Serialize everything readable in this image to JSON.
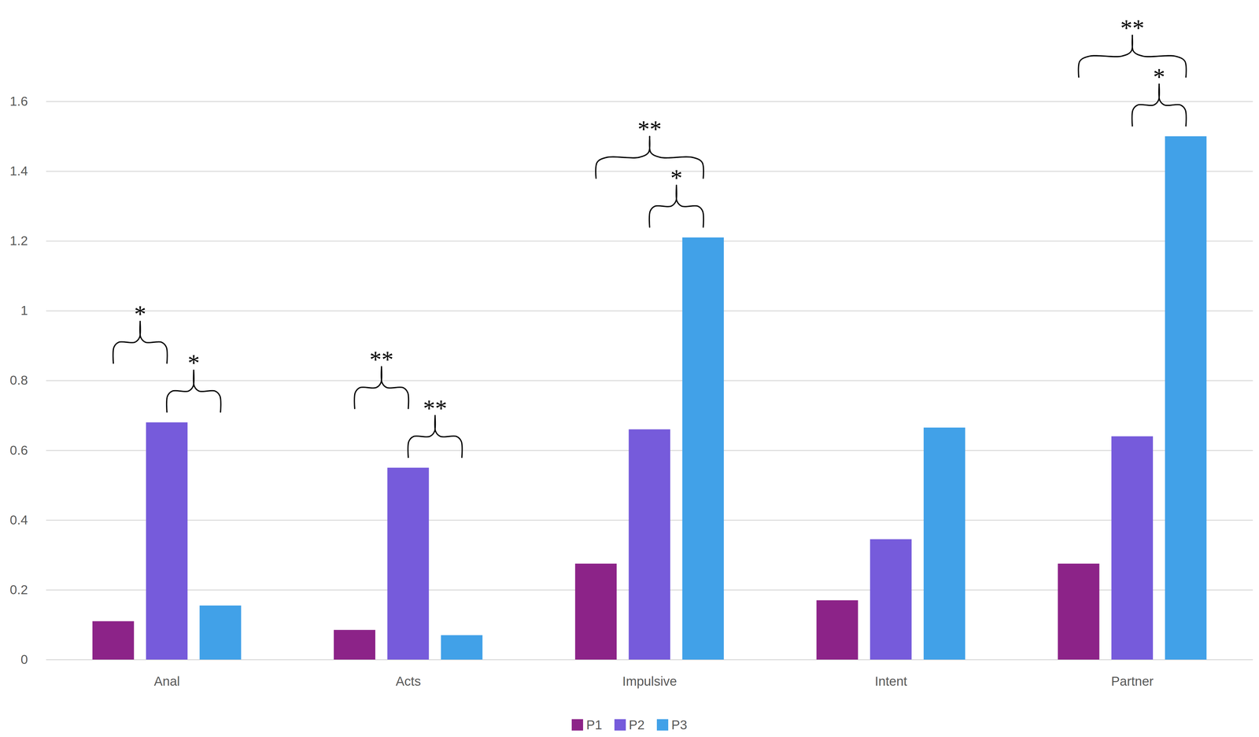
{
  "chart_data": {
    "type": "bar",
    "categories": [
      "Anal",
      "Acts",
      "Impulsive",
      "Intent",
      "Partner"
    ],
    "series": [
      {
        "name": "P1",
        "color": "#8c2388",
        "values": [
          0.11,
          0.085,
          0.275,
          0.17,
          0.275
        ]
      },
      {
        "name": "P2",
        "color": "#765bdb",
        "values": [
          0.68,
          0.55,
          0.66,
          0.345,
          0.64
        ]
      },
      {
        "name": "P3",
        "color": "#41a1e8",
        "values": [
          0.155,
          0.07,
          1.21,
          0.665,
          1.5
        ]
      }
    ],
    "ylim": [
      0,
      1.6
    ],
    "yticks": [
      0,
      0.2,
      0.4,
      0.6,
      0.8,
      1,
      1.2,
      1.4,
      1.6
    ],
    "grid": true,
    "legend": "bottom",
    "annotations": [
      {
        "category": "Anal",
        "from": "P2",
        "to": "P3",
        "label": "*"
      },
      {
        "category": "Anal",
        "from": "P1",
        "to": "P2",
        "label": "*"
      },
      {
        "category": "Acts",
        "from": "P2",
        "to": "P3",
        "label": "**"
      },
      {
        "category": "Acts",
        "from": "P1",
        "to": "P2",
        "label": "**"
      },
      {
        "category": "Impulsive",
        "from": "P2",
        "to": "P3",
        "label": "*"
      },
      {
        "category": "Impulsive",
        "from": "P1",
        "to": "P3",
        "label": "**"
      },
      {
        "category": "Partner",
        "from": "P2",
        "to": "P3",
        "label": "*"
      },
      {
        "category": "Partner",
        "from": "P1",
        "to": "P3",
        "label": "**"
      }
    ]
  }
}
